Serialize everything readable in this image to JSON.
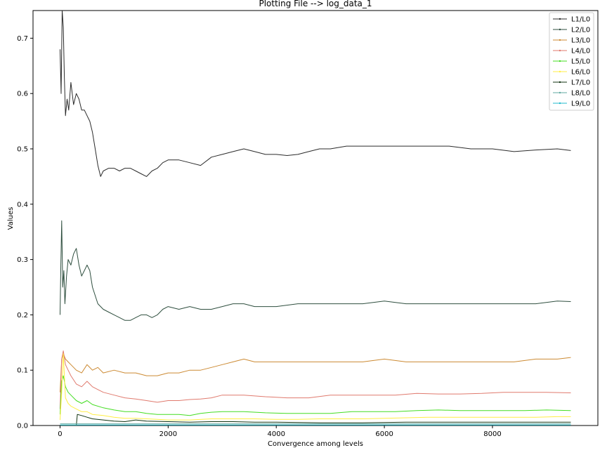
{
  "chart_data": {
    "type": "line",
    "title": "Plotting File --> log_data_1",
    "xlabel": "Convergence among levels",
    "ylabel": "Values",
    "xlim": [
      -500,
      9950
    ],
    "ylim": [
      0,
      0.75
    ],
    "x_ticks": [
      0,
      2000,
      4000,
      6000,
      8000
    ],
    "x_tick_labels": [
      "0",
      "2000",
      "4000",
      "6000",
      "8000"
    ],
    "y_ticks": [
      0.0,
      0.1,
      0.2,
      0.3,
      0.4,
      0.5,
      0.6,
      0.7
    ],
    "y_tick_labels": [
      "0.0",
      "0.1",
      "0.2",
      "0.3",
      "0.4",
      "0.5",
      "0.6",
      "0.7"
    ],
    "grid": false,
    "legend_position": "top-right",
    "series": [
      {
        "name": "L1/L0",
        "color": "#2b2b2b",
        "x": [
          0,
          20,
          40,
          60,
          80,
          100,
          130,
          160,
          200,
          250,
          300,
          350,
          400,
          450,
          500,
          550,
          600,
          650,
          700,
          750,
          800,
          900,
          1000,
          1100,
          1200,
          1300,
          1400,
          1500,
          1600,
          1700,
          1800,
          1900,
          2000,
          2200,
          2400,
          2600,
          2800,
          3000,
          3200,
          3400,
          3600,
          3800,
          4000,
          4200,
          4400,
          4600,
          4800,
          5000,
          5300,
          5600,
          6000,
          6400,
          6800,
          7200,
          7600,
          8000,
          8400,
          8800,
          9200,
          9450
        ],
        "y": [
          0.68,
          0.6,
          0.75,
          0.72,
          0.63,
          0.56,
          0.59,
          0.57,
          0.62,
          0.58,
          0.6,
          0.59,
          0.57,
          0.57,
          0.56,
          0.55,
          0.53,
          0.5,
          0.47,
          0.45,
          0.46,
          0.465,
          0.465,
          0.46,
          0.465,
          0.465,
          0.46,
          0.455,
          0.45,
          0.46,
          0.465,
          0.475,
          0.48,
          0.48,
          0.475,
          0.47,
          0.485,
          0.49,
          0.495,
          0.5,
          0.495,
          0.49,
          0.49,
          0.488,
          0.49,
          0.495,
          0.5,
          0.5,
          0.505,
          0.505,
          0.505,
          0.505,
          0.505,
          0.505,
          0.5,
          0.5,
          0.495,
          0.498,
          0.5,
          0.497
        ]
      },
      {
        "name": "L2/L0",
        "color": "#2f4f3f",
        "x": [
          0,
          15,
          30,
          50,
          70,
          90,
          120,
          150,
          200,
          250,
          300,
          350,
          400,
          450,
          500,
          550,
          600,
          700,
          800,
          900,
          1000,
          1100,
          1200,
          1300,
          1400,
          1500,
          1600,
          1700,
          1800,
          1900,
          2000,
          2200,
          2400,
          2600,
          2800,
          3000,
          3200,
          3400,
          3600,
          3800,
          4000,
          4400,
          4800,
          5200,
          5600,
          6000,
          6400,
          6800,
          7200,
          7600,
          8000,
          8400,
          8800,
          9200,
          9450
        ],
        "y": [
          0.2,
          0.29,
          0.37,
          0.25,
          0.28,
          0.22,
          0.27,
          0.3,
          0.29,
          0.31,
          0.32,
          0.29,
          0.27,
          0.28,
          0.29,
          0.28,
          0.25,
          0.22,
          0.21,
          0.205,
          0.2,
          0.195,
          0.19,
          0.19,
          0.195,
          0.2,
          0.2,
          0.195,
          0.2,
          0.21,
          0.215,
          0.21,
          0.215,
          0.21,
          0.21,
          0.215,
          0.22,
          0.22,
          0.215,
          0.215,
          0.215,
          0.22,
          0.22,
          0.22,
          0.22,
          0.225,
          0.22,
          0.22,
          0.22,
          0.22,
          0.22,
          0.22,
          0.22,
          0.225,
          0.224
        ]
      },
      {
        "name": "L3/L0",
        "color": "#cc8a33",
        "x": [
          0,
          30,
          60,
          100,
          150,
          200,
          300,
          400,
          500,
          600,
          700,
          800,
          1000,
          1200,
          1400,
          1600,
          1800,
          2000,
          2200,
          2400,
          2600,
          2800,
          3000,
          3200,
          3400,
          3600,
          4000,
          4400,
          4800,
          5200,
          5600,
          6000,
          6400,
          6800,
          7200,
          7600,
          8000,
          8400,
          8800,
          9200,
          9450
        ],
        "y": [
          0.06,
          0.12,
          0.13,
          0.12,
          0.115,
          0.11,
          0.1,
          0.095,
          0.11,
          0.1,
          0.105,
          0.095,
          0.1,
          0.095,
          0.095,
          0.09,
          0.09,
          0.095,
          0.095,
          0.1,
          0.1,
          0.105,
          0.11,
          0.115,
          0.12,
          0.115,
          0.115,
          0.115,
          0.115,
          0.115,
          0.115,
          0.12,
          0.115,
          0.115,
          0.115,
          0.115,
          0.115,
          0.115,
          0.12,
          0.12,
          0.123
        ]
      },
      {
        "name": "L4/L0",
        "color": "#e07a6e",
        "x": [
          0,
          30,
          60,
          100,
          150,
          200,
          300,
          400,
          500,
          600,
          700,
          800,
          1000,
          1200,
          1400,
          1600,
          1800,
          2000,
          2200,
          2400,
          2600,
          2800,
          3000,
          3400,
          3800,
          4200,
          4600,
          5000,
          5400,
          5800,
          6200,
          6600,
          7000,
          7400,
          7800,
          8200,
          8600,
          9000,
          9450
        ],
        "y": [
          0.03,
          0.12,
          0.135,
          0.11,
          0.1,
          0.09,
          0.075,
          0.07,
          0.08,
          0.07,
          0.065,
          0.06,
          0.055,
          0.05,
          0.048,
          0.045,
          0.042,
          0.045,
          0.045,
          0.047,
          0.048,
          0.05,
          0.055,
          0.055,
          0.052,
          0.05,
          0.05,
          0.055,
          0.055,
          0.055,
          0.055,
          0.058,
          0.057,
          0.057,
          0.058,
          0.06,
          0.06,
          0.06,
          0.059
        ]
      },
      {
        "name": "L5/L0",
        "color": "#44dd22",
        "x": [
          0,
          30,
          60,
          100,
          150,
          200,
          300,
          400,
          500,
          600,
          800,
          1000,
          1200,
          1400,
          1600,
          1800,
          2000,
          2200,
          2400,
          2600,
          2800,
          3000,
          3400,
          3800,
          4200,
          4600,
          5000,
          5400,
          5800,
          6200,
          6600,
          7000,
          7400,
          7800,
          8200,
          8600,
          9000,
          9450
        ],
        "y": [
          0.02,
          0.08,
          0.09,
          0.07,
          0.06,
          0.055,
          0.045,
          0.04,
          0.045,
          0.038,
          0.032,
          0.028,
          0.025,
          0.025,
          0.022,
          0.02,
          0.02,
          0.02,
          0.018,
          0.022,
          0.024,
          0.025,
          0.025,
          0.023,
          0.022,
          0.022,
          0.022,
          0.025,
          0.025,
          0.025,
          0.027,
          0.028,
          0.027,
          0.027,
          0.027,
          0.027,
          0.028,
          0.027
        ]
      },
      {
        "name": "L6/L0",
        "color": "#ffee44",
        "x": [
          0,
          30,
          60,
          100,
          150,
          200,
          300,
          400,
          500,
          600,
          800,
          1000,
          1200,
          1400,
          1600,
          1800,
          2000,
          2400,
          2800,
          3200,
          3600,
          4000,
          4400,
          4800,
          5200,
          5600,
          6000,
          6400,
          6800,
          7200,
          7600,
          8000,
          8400,
          8800,
          9200,
          9450
        ],
        "y": [
          0.01,
          0.06,
          0.13,
          0.05,
          0.04,
          0.035,
          0.03,
          0.025,
          0.025,
          0.02,
          0.018,
          0.015,
          0.013,
          0.013,
          0.012,
          0.011,
          0.01,
          0.01,
          0.012,
          0.012,
          0.012,
          0.011,
          0.011,
          0.012,
          0.012,
          0.012,
          0.013,
          0.014,
          0.015,
          0.015,
          0.015,
          0.015,
          0.015,
          0.015,
          0.016,
          0.016
        ]
      },
      {
        "name": "L7/L0",
        "color": "#113311",
        "x": [
          0,
          300,
          320,
          400,
          500,
          600,
          800,
          1000,
          1200,
          1400,
          1600,
          2000,
          2400,
          2800,
          3200,
          3600,
          4000,
          4800,
          5600,
          6400,
          7200,
          8000,
          8800,
          9450
        ],
        "y": [
          0.0,
          0.0,
          0.02,
          0.018,
          0.015,
          0.012,
          0.01,
          0.008,
          0.007,
          0.01,
          0.008,
          0.007,
          0.006,
          0.007,
          0.007,
          0.006,
          0.006,
          0.005,
          0.005,
          0.006,
          0.006,
          0.006,
          0.006,
          0.006
        ]
      },
      {
        "name": "L8/L0",
        "color": "#5fa8a0",
        "x": [
          0,
          1000,
          2000,
          3000,
          4000,
          5000,
          6000,
          7000,
          8000,
          9000,
          9450
        ],
        "y": [
          0.003,
          0.003,
          0.003,
          0.003,
          0.003,
          0.003,
          0.003,
          0.003,
          0.003,
          0.003,
          0.003
        ]
      },
      {
        "name": "L9/L0",
        "color": "#22bbcc",
        "x": [
          0,
          1000,
          2000,
          3000,
          4000,
          5000,
          6000,
          7000,
          8000,
          9000,
          9450
        ],
        "y": [
          0.001,
          0.001,
          0.001,
          0.001,
          0.001,
          0.001,
          0.001,
          0.001,
          0.001,
          0.001,
          0.001
        ]
      }
    ]
  }
}
